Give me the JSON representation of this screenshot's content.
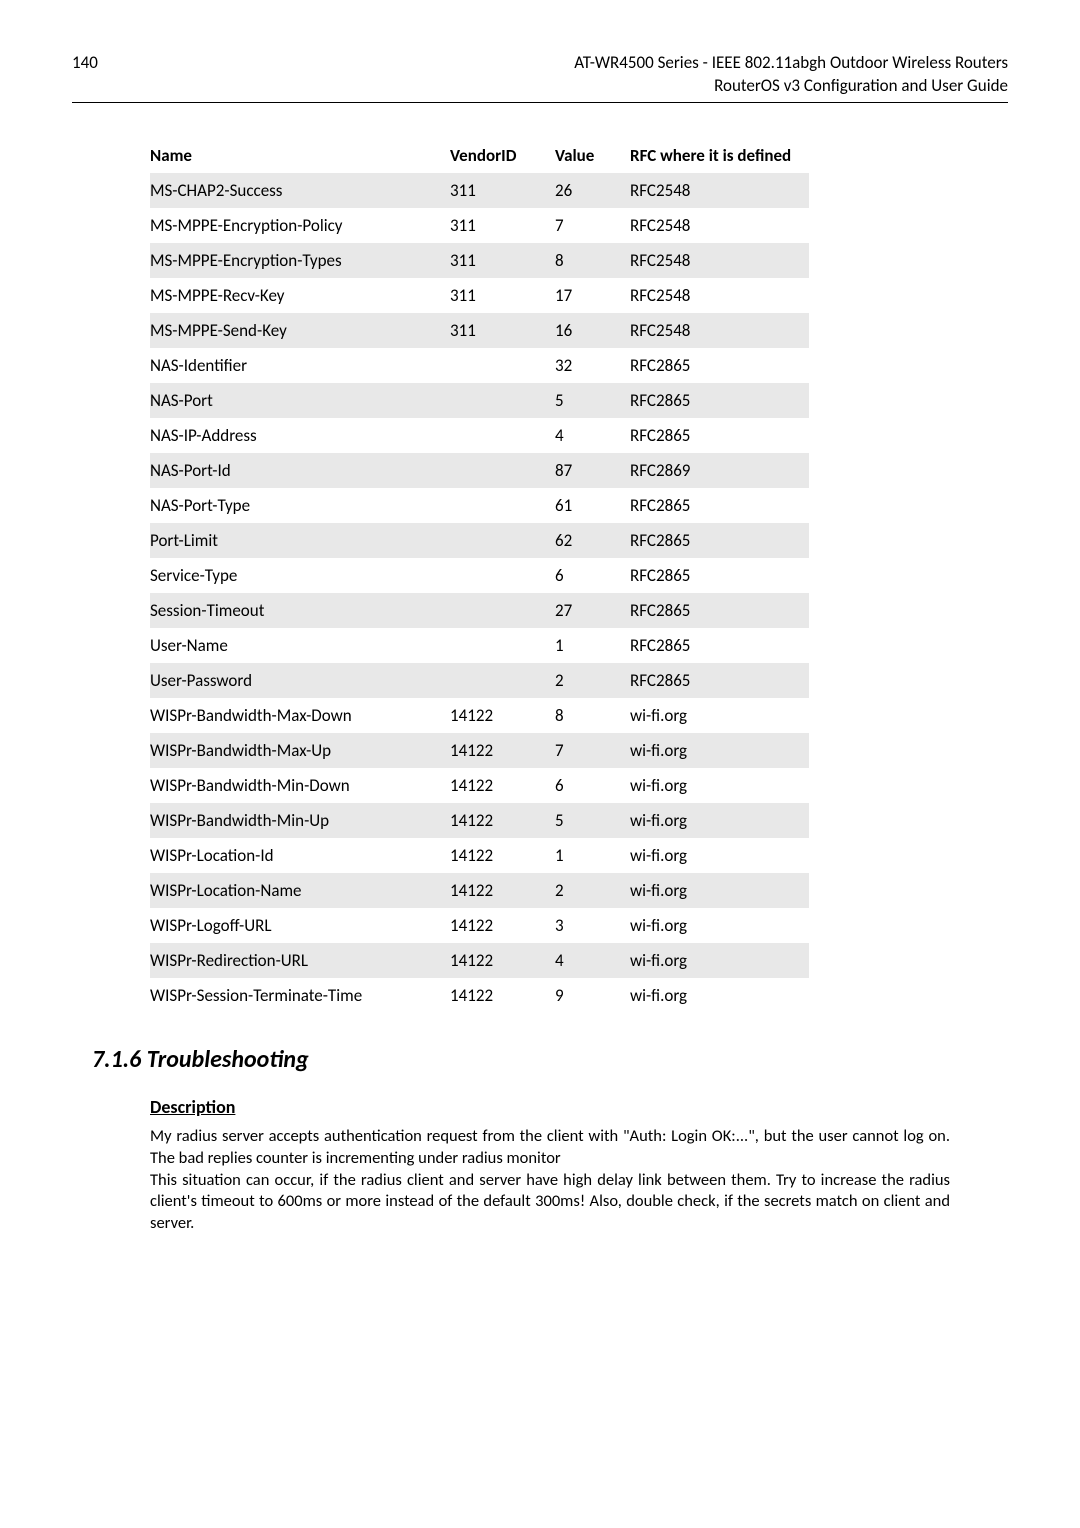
{
  "page_number": "140",
  "header_line1": "AT-WR4500 Series - IEEE 802.11abgh Outdoor Wireless Routers",
  "header_line2": "RouterOS v3 Configuration and User Guide",
  "table": {
    "headers": [
      "Name",
      "VendorID",
      "Value",
      "RFC where it is defined"
    ],
    "rows": [
      [
        "MS-CHAP2-Success",
        "311",
        "26",
        "RFC2548"
      ],
      [
        "MS-MPPE-Encryption-Policy",
        "311",
        "7",
        "RFC2548"
      ],
      [
        "MS-MPPE-Encryption-Types",
        "311",
        "8",
        "RFC2548"
      ],
      [
        "MS-MPPE-Recv-Key",
        "311",
        "17",
        "RFC2548"
      ],
      [
        "MS-MPPE-Send-Key",
        "311",
        "16",
        "RFC2548"
      ],
      [
        "NAS-Identifier",
        "",
        "32",
        "RFC2865"
      ],
      [
        "NAS-Port",
        "",
        "5",
        "RFC2865"
      ],
      [
        "NAS-IP-Address",
        "",
        "4",
        "RFC2865"
      ],
      [
        "NAS-Port-Id",
        "",
        "87",
        "RFC2869"
      ],
      [
        "NAS-Port-Type",
        "",
        "61",
        "RFC2865"
      ],
      [
        "Port-Limit",
        "",
        "62",
        "RFC2865"
      ],
      [
        "Service-Type",
        "",
        "6",
        "RFC2865"
      ],
      [
        "Session-Timeout",
        "",
        "27",
        "RFC2865"
      ],
      [
        "User-Name",
        "",
        "1",
        "RFC2865"
      ],
      [
        "User-Password",
        "",
        "2",
        "RFC2865"
      ],
      [
        "WISPr-Bandwidth-Max-Down",
        "14122",
        "8",
        "wi-fi.org"
      ],
      [
        "WISPr-Bandwidth-Max-Up",
        "14122",
        "7",
        "wi-fi.org"
      ],
      [
        "WISPr-Bandwidth-Min-Down",
        "14122",
        "6",
        "wi-fi.org"
      ],
      [
        "WISPr-Bandwidth-Min-Up",
        "14122",
        "5",
        "wi-fi.org"
      ],
      [
        "WISPr-Location-Id",
        "14122",
        "1",
        "wi-fi.org"
      ],
      [
        "WISPr-Location-Name",
        "14122",
        "2",
        "wi-fi.org"
      ],
      [
        "WISPr-Logoff-URL",
        "14122",
        "3",
        "wi-fi.org"
      ],
      [
        "WISPr-Redirection-URL",
        "14122",
        "4",
        "wi-fi.org"
      ],
      [
        "WISPr-Session-Terminate-Time",
        "14122",
        "9",
        "wi-fi.org"
      ]
    ]
  },
  "section_heading": "7.1.6 Troubleshooting",
  "sub_heading": "Description",
  "paragraph1": "My radius server accepts authentication request from the client with \"Auth: Login OK:...\", but the user cannot log on. The bad replies counter is incrementing under radius monitor",
  "paragraph2": "This situation can occur, if the radius client and server have high delay link between them. Try to increase the radius client's timeout to 600ms or more instead of the default 300ms! Also, double check, if the secrets match on client and server."
}
